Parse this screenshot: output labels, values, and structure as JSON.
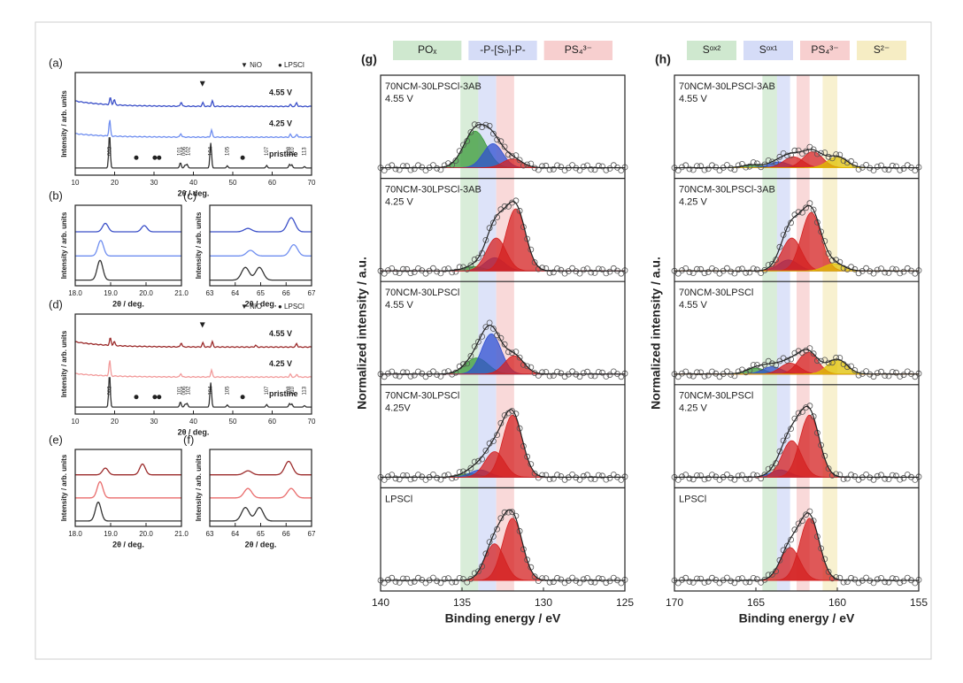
{
  "xrd_panels": [
    {
      "label": "(a)",
      "xlabel": "2θ / deg.",
      "ylabel": "Intensity / arb. units",
      "xlim": [
        10,
        70
      ],
      "xticks": [
        10,
        20,
        30,
        40,
        50,
        60,
        70
      ],
      "peak_width": 0.2,
      "legend": [
        "▼ NiO",
        "● LPSCl"
      ],
      "curves": [
        {
          "name": "pristine",
          "color": "#333333",
          "peaks": [
            [
              18.7,
              0.95
            ],
            [
              36.7,
              0.15
            ],
            [
              37.9,
              0.08
            ],
            [
              38.4,
              0.1
            ],
            [
              44.4,
              0.7
            ],
            [
              48.6,
              0.06
            ],
            [
              58.6,
              0.07
            ],
            [
              64.4,
              0.1
            ],
            [
              65.0,
              0.09
            ],
            [
              68.2,
              0.04
            ]
          ]
        },
        {
          "name": "4.25 V",
          "color": "#6f8ef0",
          "background": 0.1,
          "peaks": [
            [
              18.75,
              0.45
            ],
            [
              36.8,
              0.1
            ],
            [
              44.6,
              0.2
            ],
            [
              64.6,
              0.08
            ],
            [
              66.3,
              0.08
            ]
          ]
        },
        {
          "name": "4.55 V",
          "color": "#3a4fc8",
          "background": 0.15,
          "peaks": [
            [
              18.9,
              0.2
            ],
            [
              19.9,
              0.15
            ],
            [
              36.9,
              0.12
            ],
            [
              42.4,
              0.1
            ],
            [
              44.8,
              0.15
            ],
            [
              64.6,
              0.05
            ],
            [
              66.2,
              0.1
            ]
          ]
        }
      ],
      "hkl": [
        {
          "label": "003",
          "x": 18.7
        },
        {
          "label": "101",
          "x": 36.5
        },
        {
          "label": "006",
          "x": 37.6
        },
        {
          "label": "102",
          "x": 38.7
        },
        {
          "label": "104",
          "x": 44.4
        },
        {
          "label": "105",
          "x": 48.6
        },
        {
          "label": "107",
          "x": 58.6
        },
        {
          "label": "108",
          "x": 64.2
        },
        {
          "label": "110",
          "x": 65.2
        },
        {
          "label": "113",
          "x": 68.2
        }
      ],
      "nio": [
        42.3
      ],
      "lpscl": [
        25.5,
        30.2,
        31.3,
        52.5
      ]
    },
    {
      "label": "(b)",
      "xlabel": "2θ / deg.",
      "ylabel": "Intensity / arb. units",
      "xlim": [
        18,
        21
      ],
      "xticks": [
        {
          "value": 18,
          "label": "18.0"
        },
        {
          "value": 19,
          "label": "19.0"
        },
        {
          "value": 20,
          "label": "20.0"
        },
        {
          "value": 21,
          "label": "21.0"
        }
      ],
      "peak_width": 0.08,
      "curves": [
        {
          "color": "#333333",
          "peaks": [
            [
              18.7,
              0.7
            ]
          ]
        },
        {
          "color": "#6f8ef0",
          "peaks": [
            [
              18.72,
              0.55
            ]
          ]
        },
        {
          "color": "#3a4fc8",
          "peaks": [
            [
              18.85,
              0.3
            ],
            [
              19.95,
              0.22
            ]
          ]
        }
      ]
    },
    {
      "label": "(c)",
      "xlabel": "2θ / deg.",
      "ylabel": "Intensity / arb. units",
      "xlim": [
        63,
        67
      ],
      "xticks": [
        63,
        64,
        65,
        66,
        67
      ],
      "peak_width": 0.15,
      "curves": [
        {
          "color": "#333333",
          "peaks": [
            [
              64.4,
              0.45
            ],
            [
              64.95,
              0.45
            ]
          ]
        },
        {
          "color": "#6f8ef0",
          "peaks": [
            [
              64.6,
              0.2
            ],
            [
              66.3,
              0.4
            ]
          ]
        },
        {
          "color": "#3a4fc8",
          "peaks": [
            [
              64.5,
              0.12
            ],
            [
              66.2,
              0.5
            ]
          ]
        }
      ]
    },
    {
      "label": "(d)",
      "xlabel": "2θ / deg.",
      "ylabel": "Intensity / arb. units",
      "xlim": [
        10,
        70
      ],
      "xticks": [
        10,
        20,
        30,
        40,
        50,
        60,
        70
      ],
      "peak_width": 0.2,
      "legend": [
        "▼ NiO",
        "● LPSCl"
      ],
      "curves": [
        {
          "name": "pristine",
          "color": "#333333",
          "peaks": [
            [
              18.7,
              0.95
            ],
            [
              36.7,
              0.15
            ],
            [
              37.9,
              0.08
            ],
            [
              38.4,
              0.1
            ],
            [
              44.4,
              0.7
            ],
            [
              48.6,
              0.06
            ],
            [
              58.6,
              0.07
            ],
            [
              64.4,
              0.1
            ],
            [
              65.0,
              0.09
            ],
            [
              68.2,
              0.04
            ]
          ]
        },
        {
          "name": "4.25 V",
          "color": "#f29a9a",
          "background": 0.1,
          "peaks": [
            [
              18.75,
              0.45
            ],
            [
              36.8,
              0.1
            ],
            [
              44.6,
              0.2
            ],
            [
              64.6,
              0.08
            ],
            [
              66.3,
              0.08
            ]
          ]
        },
        {
          "name": "4.55 V",
          "color": "#9b2a2a",
          "background": 0.15,
          "peaks": [
            [
              18.9,
              0.22
            ],
            [
              19.9,
              0.12
            ],
            [
              36.9,
              0.12
            ],
            [
              42.4,
              0.12
            ],
            [
              44.8,
              0.15
            ],
            [
              55.8,
              0.05
            ],
            [
              66.2,
              0.1
            ]
          ]
        }
      ],
      "hkl": [
        {
          "label": "003",
          "x": 18.7
        },
        {
          "label": "101",
          "x": 36.5
        },
        {
          "label": "006",
          "x": 37.6
        },
        {
          "label": "102",
          "x": 38.7
        },
        {
          "label": "104",
          "x": 44.4
        },
        {
          "label": "105",
          "x": 48.6
        },
        {
          "label": "107",
          "x": 58.6
        },
        {
          "label": "108",
          "x": 64.2
        },
        {
          "label": "110",
          "x": 65.2
        },
        {
          "label": "113",
          "x": 68.2
        }
      ],
      "nio": [
        42.3
      ],
      "lpscl": [
        25.5,
        30.2,
        31.3,
        52.5
      ]
    },
    {
      "label": "(e)",
      "xlabel": "2θ / deg.",
      "ylabel": "Intensity / arb. units",
      "xlim": [
        18,
        21
      ],
      "xticks": [
        {
          "value": 18,
          "label": "18.0"
        },
        {
          "value": 19,
          "label": "19.0"
        },
        {
          "value": 20,
          "label": "20.0"
        },
        {
          "value": 21,
          "label": "21.0"
        }
      ],
      "peak_width": 0.08,
      "curves": [
        {
          "color": "#333333",
          "peaks": [
            [
              18.65,
              0.7
            ]
          ]
        },
        {
          "color": "#e96b6b",
          "peaks": [
            [
              18.7,
              0.6
            ]
          ]
        },
        {
          "color": "#9b2a2a",
          "peaks": [
            [
              18.85,
              0.25
            ],
            [
              19.9,
              0.4
            ]
          ]
        }
      ]
    },
    {
      "label": "(f)",
      "xlabel": "2θ / deg.",
      "ylabel": "Intensity / arb. units",
      "xlim": [
        63,
        67
      ],
      "xticks": [
        63,
        64,
        65,
        66,
        67
      ],
      "peak_width": 0.15,
      "curves": [
        {
          "color": "#333333",
          "peaks": [
            [
              64.4,
              0.5
            ],
            [
              64.95,
              0.5
            ]
          ]
        },
        {
          "color": "#e96b6b",
          "peaks": [
            [
              64.5,
              0.35
            ],
            [
              66.2,
              0.35
            ]
          ]
        },
        {
          "color": "#9b2a2a",
          "peaks": [
            [
              64.5,
              0.15
            ],
            [
              66.1,
              0.5
            ]
          ]
        }
      ]
    }
  ],
  "xps_panels": [
    {
      "label": "(g)",
      "xlabel": "Binding energy / eV",
      "ylabel": "Normalized intensity / a.u.",
      "xlim": [
        140,
        125
      ],
      "xticks": [
        140,
        135,
        130,
        125
      ],
      "bands": [
        {
          "name": "POₓ",
          "color": "#cfe8cf",
          "range": [
            135.1,
            134.0
          ]
        },
        {
          "name": "-P-[Sₙ]-P-",
          "color": "#d5dcf7",
          "range": [
            134.0,
            132.9
          ]
        },
        {
          "name": "PS₄³⁻",
          "color": "#f7cfcf",
          "range": [
            132.9,
            131.8
          ]
        }
      ],
      "spectra": [
        {
          "lines": [
            "70NCM-30LPSCl-3AB",
            "4.55 V"
          ],
          "components": [
            {
              "center": 134.2,
              "height": 0.5,
              "width": 0.7,
              "color": "#3a9a3a"
            },
            {
              "center": 133.1,
              "height": 0.33,
              "width": 0.6,
              "color": "#3050d0"
            },
            {
              "center": 131.9,
              "height": 0.12,
              "width": 0.6,
              "color": "#d42020"
            }
          ]
        },
        {
          "lines": [
            "70NCM-30LPSCl-3AB",
            "4.25 V"
          ],
          "components": [
            {
              "center": 134.3,
              "height": 0.06,
              "width": 0.6,
              "color": "#3a9a3a"
            },
            {
              "center": 133.0,
              "height": 0.18,
              "width": 0.6,
              "color": "#3050d0"
            },
            {
              "center": 132.9,
              "height": 0.45,
              "width": 0.6,
              "color": "#d42020"
            },
            {
              "center": 131.7,
              "height": 0.85,
              "width": 0.6,
              "color": "#d42020"
            }
          ]
        },
        {
          "lines": [
            "70NCM-30LPSCl",
            "4.55 V"
          ],
          "components": [
            {
              "center": 134.1,
              "height": 0.22,
              "width": 0.7,
              "color": "#3a9a3a"
            },
            {
              "center": 133.2,
              "height": 0.55,
              "width": 0.6,
              "color": "#3050d0"
            },
            {
              "center": 131.8,
              "height": 0.25,
              "width": 0.6,
              "color": "#d42020"
            }
          ]
        },
        {
          "lines": [
            "70NCM-30LPSCl",
            "4.25V"
          ],
          "components": [
            {
              "center": 134.5,
              "height": 0.05,
              "width": 0.6,
              "color": "#3a9a3a"
            },
            {
              "center": 133.9,
              "height": 0.1,
              "width": 0.6,
              "color": "#3050d0"
            },
            {
              "center": 133.0,
              "height": 0.35,
              "width": 0.6,
              "color": "#d42020"
            },
            {
              "center": 131.9,
              "height": 0.85,
              "width": 0.6,
              "color": "#d42020"
            }
          ]
        },
        {
          "lines": [
            "LPSCl"
          ],
          "components": [
            {
              "center": 133.0,
              "height": 0.5,
              "width": 0.6,
              "color": "#d42020"
            },
            {
              "center": 131.9,
              "height": 0.85,
              "width": 0.6,
              "color": "#d42020"
            }
          ]
        }
      ]
    },
    {
      "label": "(h)",
      "xlabel": "Binding energy / eV",
      "ylabel": "Normalized intensity / a.u.",
      "xlim": [
        170,
        155
      ],
      "xticks": [
        170,
        165,
        160,
        155
      ],
      "bands": [
        {
          "name": "Sᵒˣ²",
          "color": "#cfe8cf",
          "range": [
            164.6,
            163.7
          ]
        },
        {
          "name": "Sᵒˣ¹",
          "color": "#d5dcf7",
          "range": [
            163.7,
            162.9
          ]
        },
        {
          "name": "PS₄³⁻",
          "color": "#f7cfcf",
          "range": [
            162.5,
            161.7
          ]
        },
        {
          "name": "S²⁻",
          "color": "#f6edc4",
          "range": [
            160.9,
            160.0
          ]
        }
      ],
      "spectra": [
        {
          "lines": [
            "70NCM-30LPSCl-3AB",
            "4.55 V"
          ],
          "components": [
            {
              "center": 165.2,
              "height": 0.04,
              "width": 0.6,
              "color": "#3a9a3a"
            },
            {
              "center": 163.6,
              "height": 0.08,
              "width": 0.6,
              "color": "#3050d0"
            },
            {
              "center": 162.7,
              "height": 0.15,
              "width": 0.6,
              "color": "#d42020"
            },
            {
              "center": 161.5,
              "height": 0.22,
              "width": 0.6,
              "color": "#d42020"
            },
            {
              "center": 160.0,
              "height": 0.15,
              "width": 0.6,
              "color": "#e0c000"
            }
          ]
        },
        {
          "lines": [
            "70NCM-30LPSCl-3AB",
            "4.25 V"
          ],
          "components": [
            {
              "center": 163.0,
              "height": 0.15,
              "width": 0.6,
              "color": "#3050d0"
            },
            {
              "center": 162.8,
              "height": 0.45,
              "width": 0.6,
              "color": "#d42020"
            },
            {
              "center": 161.6,
              "height": 0.8,
              "width": 0.6,
              "color": "#d42020"
            },
            {
              "center": 160.2,
              "height": 0.1,
              "width": 0.6,
              "color": "#e0c000"
            }
          ]
        },
        {
          "lines": [
            "70NCM-30LPSCl",
            "4.55 V"
          ],
          "components": [
            {
              "center": 165.0,
              "height": 0.08,
              "width": 0.6,
              "color": "#3a9a3a"
            },
            {
              "center": 164.0,
              "height": 0.1,
              "width": 0.6,
              "color": "#3050d0"
            },
            {
              "center": 162.9,
              "height": 0.15,
              "width": 0.6,
              "color": "#d42020"
            },
            {
              "center": 161.8,
              "height": 0.3,
              "width": 0.6,
              "color": "#d42020"
            },
            {
              "center": 160.0,
              "height": 0.2,
              "width": 0.6,
              "color": "#e0c000"
            }
          ]
        },
        {
          "lines": [
            "70NCM-30LPSCl",
            "4.25 V"
          ],
          "components": [
            {
              "center": 163.5,
              "height": 0.1,
              "width": 0.6,
              "color": "#3050d0"
            },
            {
              "center": 162.8,
              "height": 0.5,
              "width": 0.6,
              "color": "#d42020"
            },
            {
              "center": 161.7,
              "height": 0.85,
              "width": 0.6,
              "color": "#d42020"
            }
          ]
        },
        {
          "lines": [
            "LPSCl"
          ],
          "components": [
            {
              "center": 162.9,
              "height": 0.45,
              "width": 0.6,
              "color": "#d42020"
            },
            {
              "center": 161.7,
              "height": 0.85,
              "width": 0.6,
              "color": "#d42020"
            }
          ]
        }
      ]
    }
  ]
}
